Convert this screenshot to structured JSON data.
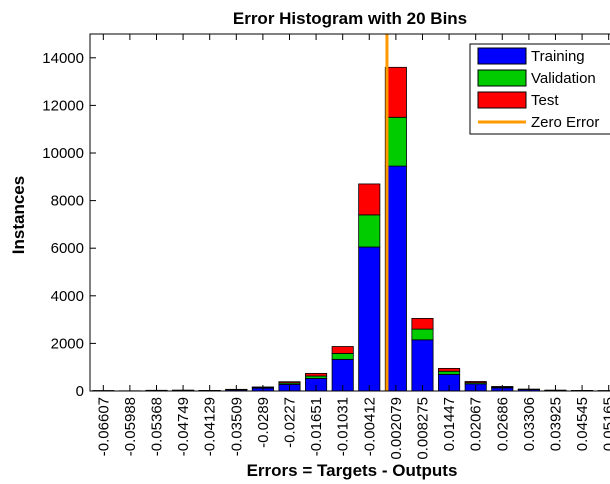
{
  "chart_data": {
    "type": "stacked_histogram",
    "title": "Error Histogram with 20 Bins",
    "xlabel": "Errors = Targets - Outputs",
    "ylabel": "Instances",
    "x": [
      -0.06607,
      -0.05988,
      -0.05368,
      -0.04749,
      -0.04129,
      -0.03509,
      -0.0289,
      -0.0227,
      -0.01651,
      -0.01031,
      -0.00412,
      0.002079,
      0.008275,
      0.01447,
      0.02067,
      0.02686,
      0.03306,
      0.03925,
      0.04545,
      0.05165
    ],
    "xticks": [
      -0.06607,
      -0.05988,
      -0.05368,
      -0.04749,
      -0.04129,
      -0.03509,
      -0.0289,
      -0.0227,
      -0.01651,
      -0.01031,
      -0.00412,
      0.002079,
      0.008275,
      0.01447,
      0.02067,
      0.02686,
      0.03306,
      0.03925,
      0.04545,
      0.05165
    ],
    "xlim": [
      -0.06917,
      0.05475
    ],
    "series": [
      {
        "name": "Training",
        "color": "#0000ff",
        "values": [
          10,
          5,
          20,
          25,
          15,
          50,
          120,
          280,
          530,
          1330,
          6050,
          9450,
          2150,
          700,
          300,
          130,
          60,
          25,
          15,
          10
        ]
      },
      {
        "name": "Validation",
        "color": "#00cc00",
        "values": [
          3,
          1,
          5,
          5,
          3,
          10,
          25,
          60,
          100,
          250,
          1350,
          2050,
          450,
          130,
          50,
          30,
          10,
          5,
          3,
          2
        ]
      },
      {
        "name": "Test",
        "color": "#ff0000",
        "values": [
          2,
          1,
          5,
          5,
          3,
          10,
          25,
          50,
          110,
          290,
          1300,
          2100,
          450,
          120,
          50,
          30,
          10,
          5,
          3,
          2
        ]
      }
    ],
    "reference_line": {
      "name": "Zero Error",
      "color": "#ff9900",
      "x": 0
    },
    "ylim": [
      0,
      15000
    ],
    "yticks": [
      0,
      2000,
      4000,
      6000,
      8000,
      10000,
      12000,
      14000
    ],
    "legend": "upper right"
  }
}
